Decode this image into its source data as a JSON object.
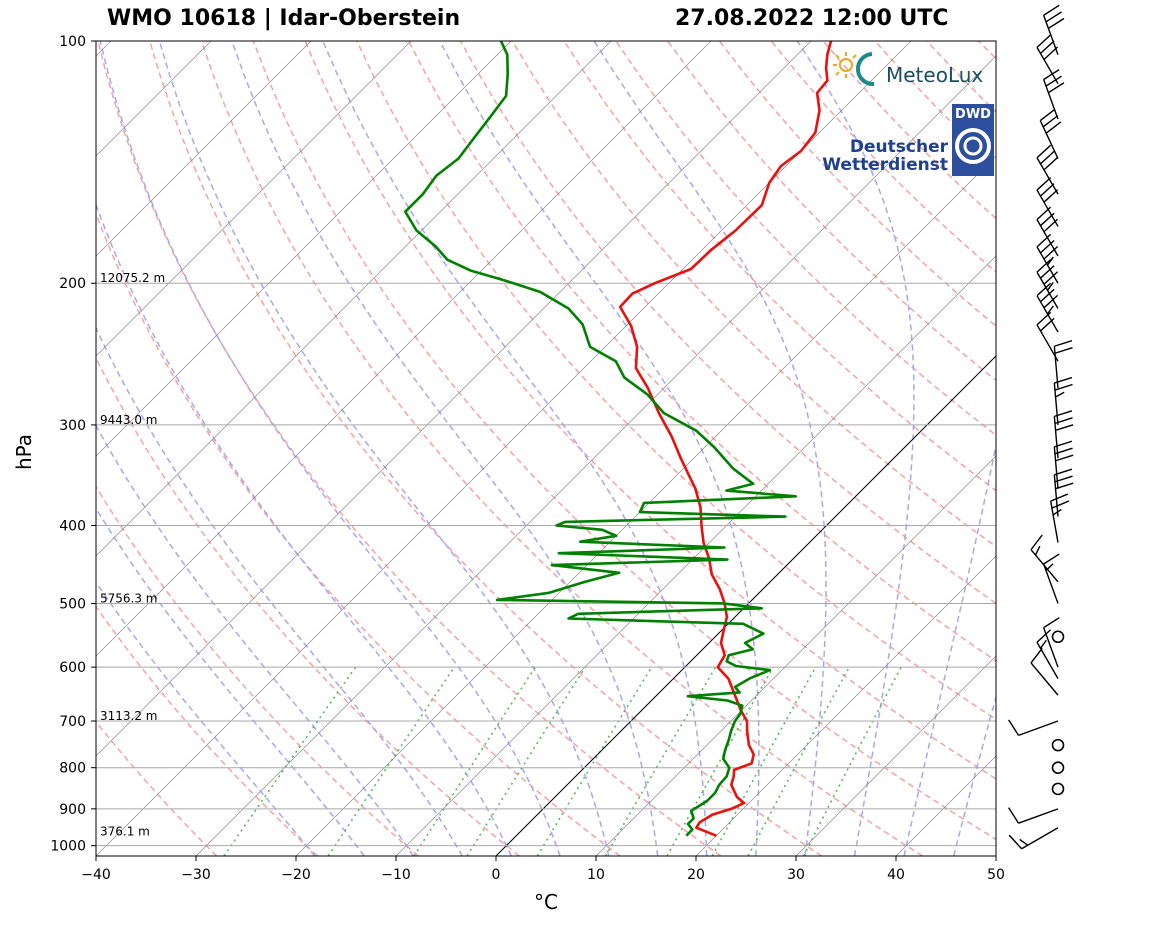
{
  "header": {
    "station": "WMO 10618 | Idar-Oberstein",
    "datetime": "27.08.2022 12:00 UTC"
  },
  "logos": {
    "meteolux": "MeteoLux",
    "dwd_abbrev": "DWD",
    "dwd_line1": "Deutscher",
    "dwd_line2": "Wetterdienst"
  },
  "colors": {
    "temperature": "#e8110e",
    "dewpoint": "#008000",
    "dry_adiabat": "#f4a3a3",
    "moist_adiabat": "#a7a7f0",
    "mixing_ratio": "#5ab85a",
    "isotherm": "#8c8c8c",
    "isobar": "#a9a9a9"
  },
  "chart_data": {
    "type": "skew-t log-p",
    "xlabel": "°C",
    "ylabel": "hPa",
    "xlim": [
      -40,
      50
    ],
    "ylim": [
      1030,
      100
    ],
    "y_scale": "log",
    "x_ticks": [
      "−40",
      "−30",
      "−20",
      "−10",
      "0",
      "10",
      "20",
      "30",
      "40",
      "50"
    ],
    "x_tick_values": [
      -40,
      -30,
      -20,
      -10,
      0,
      10,
      20,
      30,
      40,
      50
    ],
    "y_ticks": [
      "100",
      "200",
      "300",
      "400",
      "500",
      "600",
      "700",
      "800",
      "900",
      "1000"
    ],
    "y_tick_values": [
      100,
      200,
      300,
      400,
      500,
      600,
      700,
      800,
      900,
      1000
    ],
    "height_labels": [
      {
        "p": 200,
        "text": "12075.2 m"
      },
      {
        "p": 300,
        "text": "9443.0 m"
      },
      {
        "p": 500,
        "text": "5756.3 m"
      },
      {
        "p": 700,
        "text": "3113.2 m"
      },
      {
        "p": 1000,
        "text": "376.1 m"
      }
    ],
    "series": [
      {
        "name": "temperature",
        "points": [
          [
            972,
            20.0
          ],
          [
            960,
            18.5
          ],
          [
            950,
            17.2
          ],
          [
            935,
            17.0
          ],
          [
            915,
            17.5
          ],
          [
            900,
            18.8
          ],
          [
            885,
            19.5
          ],
          [
            870,
            18.2
          ],
          [
            855,
            17.3
          ],
          [
            840,
            16.4
          ],
          [
            820,
            15.8
          ],
          [
            805,
            15.2
          ],
          [
            790,
            16.3
          ],
          [
            770,
            15.6
          ],
          [
            750,
            14.2
          ],
          [
            720,
            12.6
          ],
          [
            700,
            11.6
          ],
          [
            680,
            10.0
          ],
          [
            650,
            7.8
          ],
          [
            620,
            5.5
          ],
          [
            600,
            3.3
          ],
          [
            580,
            2.8
          ],
          [
            560,
            1.2
          ],
          [
            540,
            0.2
          ],
          [
            520,
            -0.8
          ],
          [
            500,
            -2.4
          ],
          [
            480,
            -4.3
          ],
          [
            460,
            -6.6
          ],
          [
            440,
            -8.4
          ],
          [
            420,
            -10.6
          ],
          [
            400,
            -12.5
          ],
          [
            380,
            -14.4
          ],
          [
            360,
            -16.8
          ],
          [
            345,
            -19.0
          ],
          [
            330,
            -21.3
          ],
          [
            310,
            -24.4
          ],
          [
            290,
            -28.0
          ],
          [
            270,
            -31.6
          ],
          [
            255,
            -34.8
          ],
          [
            240,
            -36.8
          ],
          [
            226,
            -39.5
          ],
          [
            214,
            -42.5
          ],
          [
            206,
            -42.6
          ],
          [
            200,
            -41.4
          ],
          [
            192,
            -39.2
          ],
          [
            182,
            -39.1
          ],
          [
            172,
            -38.6
          ],
          [
            160,
            -38.5
          ],
          [
            150,
            -40.0
          ],
          [
            143,
            -40.5
          ],
          [
            137,
            -40.0
          ],
          [
            130,
            -40.4
          ],
          [
            122,
            -42.2
          ],
          [
            116,
            -44.2
          ],
          [
            112,
            -44.4
          ],
          [
            108,
            -45.8
          ],
          [
            104,
            -47.0
          ],
          [
            100,
            -48.0
          ]
        ]
      },
      {
        "name": "dewpoint",
        "points": [
          [
            972,
            17.0
          ],
          [
            955,
            17.0
          ],
          [
            940,
            16.0
          ],
          [
            925,
            16.0
          ],
          [
            905,
            15.0
          ],
          [
            880,
            15.6
          ],
          [
            860,
            15.6
          ],
          [
            840,
            15.2
          ],
          [
            820,
            15.1
          ],
          [
            800,
            14.5
          ],
          [
            780,
            13.0
          ],
          [
            760,
            12.3
          ],
          [
            740,
            11.7
          ],
          [
            720,
            11.0
          ],
          [
            700,
            10.4
          ],
          [
            685,
            10.2
          ],
          [
            670,
            9.6
          ],
          [
            660,
            7.6
          ],
          [
            652,
            3.2
          ],
          [
            645,
            8.0
          ],
          [
            635,
            7.0
          ],
          [
            620,
            7.6
          ],
          [
            605,
            8.8
          ],
          [
            598,
            5.0
          ],
          [
            590,
            3.6
          ],
          [
            580,
            3.2
          ],
          [
            570,
            5.0
          ],
          [
            560,
            3.6
          ],
          [
            545,
            4.5
          ],
          [
            530,
            1.5
          ],
          [
            522,
            -16.5
          ],
          [
            515,
            -16.0
          ],
          [
            507,
            1.8
          ],
          [
            500,
            -2.5
          ],
          [
            495,
            -25.5
          ],
          [
            485,
            -21.0
          ],
          [
            470,
            -18.5
          ],
          [
            458,
            -16.0
          ],
          [
            448,
            -23.5
          ],
          [
            441,
            -6.5
          ],
          [
            433,
            -24.0
          ],
          [
            426,
            -8.0
          ],
          [
            419,
            -23.0
          ],
          [
            412,
            -20.0
          ],
          [
            405,
            -22.0
          ],
          [
            400,
            -27.0
          ],
          [
            396,
            -26.5
          ],
          [
            390,
            -5.0
          ],
          [
            385,
            -20.0
          ],
          [
            375,
            -20.5
          ],
          [
            368,
            -6.0
          ],
          [
            362,
            -13.5
          ],
          [
            355,
            -11.5
          ],
          [
            340,
            -15.0
          ],
          [
            320,
            -19.0
          ],
          [
            305,
            -22.5
          ],
          [
            290,
            -27.5
          ],
          [
            275,
            -31.0
          ],
          [
            262,
            -35.0
          ],
          [
            250,
            -37.5
          ],
          [
            240,
            -41.5
          ],
          [
            225,
            -44.5
          ],
          [
            215,
            -47.5
          ],
          [
            205,
            -52.0
          ],
          [
            198,
            -57.0
          ],
          [
            193,
            -61.0
          ],
          [
            187,
            -64.5
          ],
          [
            180,
            -67.0
          ],
          [
            172,
            -70.5
          ],
          [
            163,
            -73.5
          ],
          [
            155,
            -73.5
          ],
          [
            147,
            -74.0
          ],
          [
            140,
            -73.5
          ],
          [
            132,
            -74.0
          ],
          [
            124,
            -74.5
          ],
          [
            117,
            -75.0
          ],
          [
            110,
            -77.0
          ],
          [
            104,
            -79.0
          ],
          [
            100,
            -81.0
          ]
        ]
      }
    ],
    "wind_barbs": [
      {
        "p": 950,
        "dir": 240,
        "speed": 15
      },
      {
        "p": 900,
        "dir": 250,
        "speed": 10
      },
      {
        "p": 850,
        "dir": 0,
        "speed": 0
      },
      {
        "p": 800,
        "dir": 0,
        "speed": 0
      },
      {
        "p": 750,
        "dir": 0,
        "speed": 0
      },
      {
        "p": 700,
        "dir": 250,
        "speed": 10
      },
      {
        "p": 650,
        "dir": 320,
        "speed": 10
      },
      {
        "p": 620,
        "dir": 330,
        "speed": 15
      },
      {
        "p": 600,
        "dir": 340,
        "speed": 10
      },
      {
        "p": 550,
        "dir": 0,
        "speed": 0
      },
      {
        "p": 500,
        "dir": 340,
        "speed": 15
      },
      {
        "p": 470,
        "dir": 320,
        "speed": 15
      },
      {
        "p": 420,
        "dir": 350,
        "speed": 25
      },
      {
        "p": 390,
        "dir": 355,
        "speed": 30
      },
      {
        "p": 360,
        "dir": 355,
        "speed": 30
      },
      {
        "p": 330,
        "dir": 355,
        "speed": 30
      },
      {
        "p": 300,
        "dir": 355,
        "speed": 25
      },
      {
        "p": 270,
        "dir": 355,
        "speed": 20
      },
      {
        "p": 250,
        "dir": 330,
        "speed": 20
      },
      {
        "p": 230,
        "dir": 330,
        "speed": 35
      },
      {
        "p": 215,
        "dir": 330,
        "speed": 35
      },
      {
        "p": 200,
        "dir": 330,
        "speed": 35
      },
      {
        "p": 185,
        "dir": 330,
        "speed": 30
      },
      {
        "p": 170,
        "dir": 330,
        "speed": 30
      },
      {
        "p": 155,
        "dir": 330,
        "speed": 30
      },
      {
        "p": 140,
        "dir": 335,
        "speed": 30
      },
      {
        "p": 125,
        "dir": 340,
        "speed": 30
      },
      {
        "p": 113,
        "dir": 330,
        "speed": 30
      },
      {
        "p": 104,
        "dir": 340,
        "speed": 30
      }
    ]
  }
}
